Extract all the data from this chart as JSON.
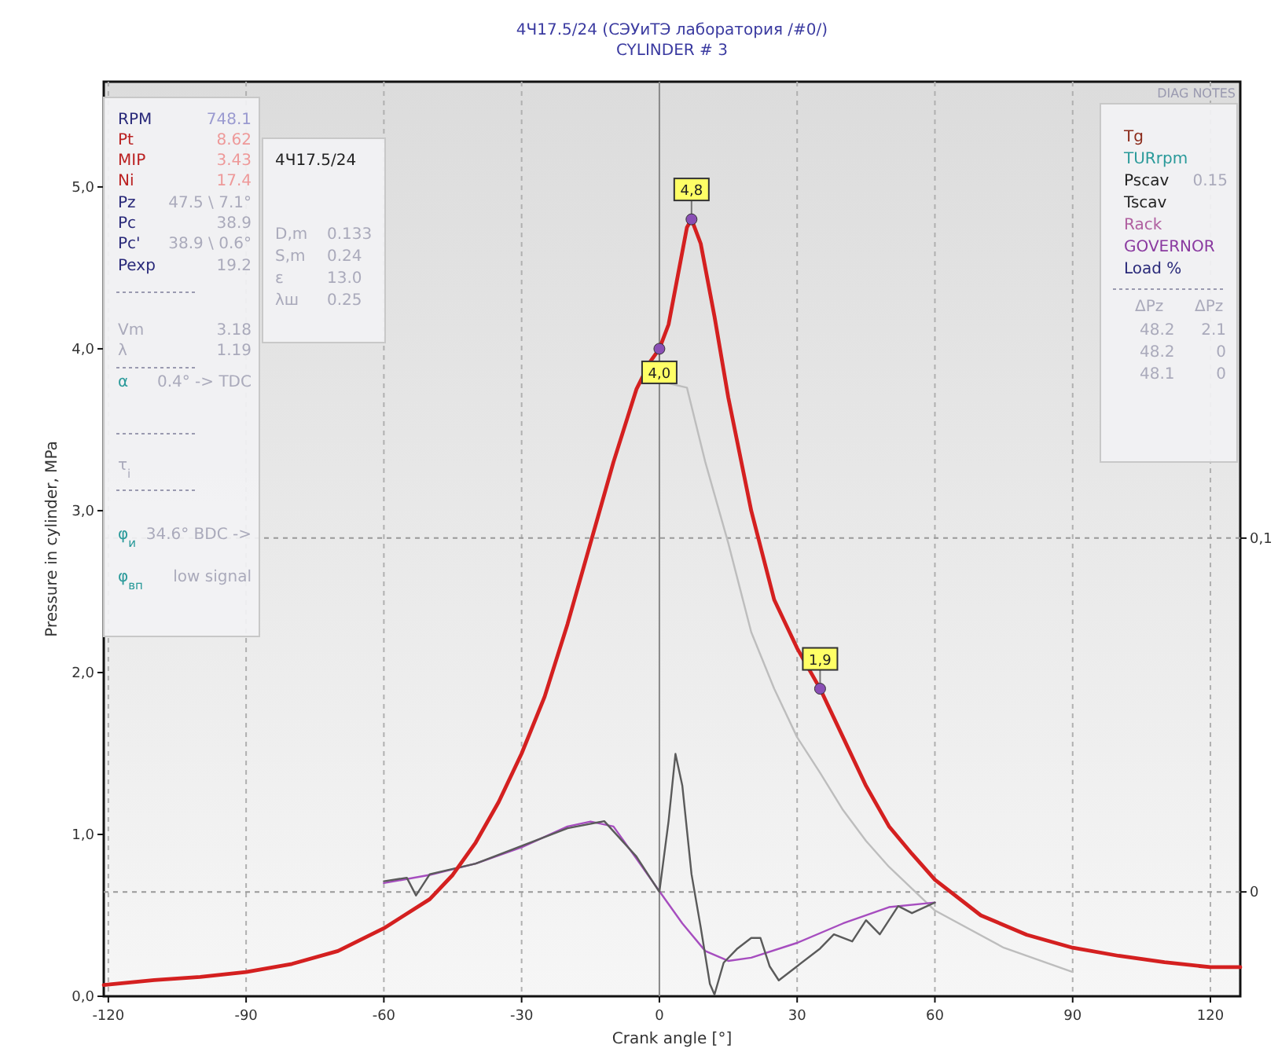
{
  "chart_data": [
    {
      "type": "line",
      "title": "4Ч17.5/24 (СЭУиТЭ лаборатория /#0/)",
      "subtitle": "CYLINDER # 3",
      "xlabel": "Crank angle [°]",
      "ylabel": "Pressure in cylinder, MPa",
      "xlim": [
        -121,
        126.5
      ],
      "xticks": [
        -120,
        -90,
        -60,
        -30,
        0,
        30,
        60,
        90,
        120
      ],
      "ylim": [
        0,
        5.65
      ],
      "yticks": [
        {
          "value": 0,
          "label": "0,0"
        },
        {
          "value": 1,
          "label": "1,0"
        },
        {
          "value": 2,
          "label": "2,0"
        },
        {
          "value": 3,
          "label": "3,0"
        },
        {
          "value": 4,
          "label": "4,0"
        },
        {
          "value": 5,
          "label": "5,0"
        }
      ],
      "y2lim": [
        -0.0295,
        0.229
      ],
      "y2ticks": [
        {
          "value": 0,
          "label": "0"
        },
        {
          "value": 0.1,
          "label": "0,1"
        }
      ],
      "grid": true,
      "marker": "none",
      "line_style": "solid",
      "series": [
        {
          "color": "#bdbdbd",
          "x": [
            0,
            6,
            10,
            15,
            18,
            20,
            25,
            30,
            35,
            40,
            45,
            50,
            60,
            75,
            90
          ],
          "values": [
            3.8,
            3.76,
            3.3,
            2.8,
            2.47,
            2.25,
            1.9,
            1.6,
            1.38,
            1.15,
            0.96,
            0.8,
            0.53,
            0.3,
            0.15
          ]
        },
        {
          "color": "#a64dbf",
          "axis": "y2",
          "x": [
            -60,
            -50,
            -40,
            -30,
            -20,
            -15,
            -10,
            -5,
            0,
            5,
            10,
            15,
            20,
            30,
            40,
            50,
            60
          ],
          "values": [
            0.0025,
            0.0048,
            0.008,
            0.0126,
            0.0185,
            0.0199,
            0.0185,
            0.0094,
            0.0002,
            -0.0089,
            -0.0167,
            -0.0195,
            -0.0186,
            -0.0144,
            -0.0089,
            -0.0043,
            -0.003
          ]
        },
        {
          "color": "#5a5a5a",
          "axis": "y2",
          "x": [
            -60,
            -55,
            -53,
            -50,
            -40,
            -30,
            -20,
            -12,
            -5,
            0,
            2,
            3.5,
            5,
            7,
            9,
            11,
            12,
            14,
            17,
            20,
            22,
            24,
            26,
            30,
            35,
            38,
            42,
            45,
            48,
            52,
            55,
            60
          ],
          "values": [
            0.003,
            0.004,
            -0.001,
            0.005,
            0.008,
            0.013,
            0.018,
            0.02,
            0.01,
            0.0,
            0.02,
            0.039,
            0.03,
            0.005,
            -0.01,
            -0.026,
            -0.029,
            -0.02,
            -0.016,
            -0.013,
            -0.013,
            -0.021,
            -0.025,
            -0.021,
            -0.016,
            -0.012,
            -0.014,
            -0.008,
            -0.012,
            -0.004,
            -0.006,
            -0.003
          ]
        },
        {
          "color": "#d42020",
          "x": [
            -121,
            -110,
            -100,
            -90,
            -80,
            -70,
            -60,
            -50,
            -45,
            -40,
            -35,
            -30,
            -25,
            -20,
            -15,
            -10,
            -5,
            -2,
            0,
            2,
            4,
            6,
            7,
            9,
            12,
            15,
            20,
            25,
            30,
            35,
            40,
            45,
            50,
            55,
            60,
            70,
            80,
            90,
            100,
            110,
            120,
            126.5
          ],
          "values": [
            0.07,
            0.1,
            0.12,
            0.15,
            0.2,
            0.28,
            0.42,
            0.6,
            0.75,
            0.95,
            1.2,
            1.5,
            1.85,
            2.3,
            2.8,
            3.3,
            3.75,
            3.92,
            4.0,
            4.15,
            4.45,
            4.75,
            4.8,
            4.65,
            4.2,
            3.7,
            3.0,
            2.45,
            2.15,
            1.9,
            1.6,
            1.3,
            1.05,
            0.88,
            0.72,
            0.5,
            0.38,
            0.3,
            0.25,
            0.21,
            0.18,
            0.18
          ]
        }
      ],
      "annotations": [
        {
          "text": "4,8",
          "x": 7,
          "y": 4.8
        },
        {
          "text": "4,0",
          "x": 0,
          "y": 4.0
        },
        {
          "text": "1,9",
          "x": 35,
          "y": 1.9
        }
      ]
    },
    {
      "type": "other",
      "annotations": [
        "RPM",
        "748.1",
        "Pt",
        "8.62",
        "MIP",
        "3.43",
        "Ni",
        "17.4",
        "Pz",
        "47.5 \\ 7.1°",
        "Pc",
        "38.9",
        "Pc'",
        "38.9 \\ 0.6°",
        "Pexp",
        "19.2",
        "Vm",
        "3.18",
        "λ",
        "1.19",
        "α",
        "0.4° -> TDC",
        "τ$_{i}$",
        "φ$_{и}$",
        "34.6° BDC ->",
        "φ$_{вп}$",
        "low signal"
      ]
    },
    {
      "type": "other",
      "annotations": [
        "4Ч17.5/24",
        "D,m",
        "0.133",
        "S,m",
        "0.24",
        "ε",
        "13.0",
        "λш",
        "0.25"
      ]
    },
    {
      "type": "other",
      "annotations": [
        "DIAG NOTES",
        "Tg",
        "TURrpm",
        "Pscav",
        "0.15",
        "Tscav",
        "Rack",
        "GOVERNOR",
        "Load %",
        "ΔPz",
        "ΔPz",
        "48.2",
        "2.1",
        "48.2",
        "0",
        "48.1",
        "0"
      ]
    }
  ]
}
